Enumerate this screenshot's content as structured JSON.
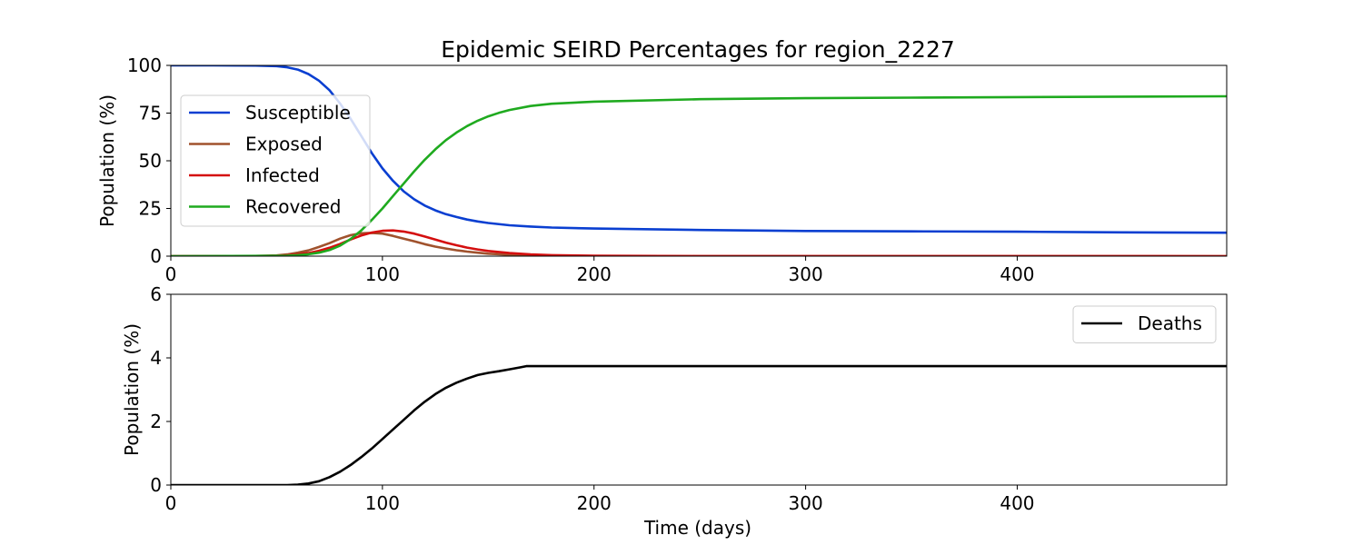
{
  "chart_data": [
    {
      "type": "line",
      "title": "Epidemic SEIRD Percentages for region_2227",
      "xlabel": "",
      "ylabel": "Population (%)",
      "xlim": [
        0,
        499
      ],
      "ylim": [
        0,
        100
      ],
      "xticks": [
        "0",
        "100",
        "200",
        "300",
        "400"
      ],
      "yticks": [
        "0",
        "25",
        "50",
        "75",
        "100"
      ],
      "grid": false,
      "legend_position": "upper-left",
      "series": [
        {
          "name": "Susceptible",
          "color": "#0a3fd1",
          "points": [
            [
              0,
              100
            ],
            [
              20,
              100
            ],
            [
              40,
              99.9
            ],
            [
              50,
              99.6
            ],
            [
              55,
              99
            ],
            [
              60,
              97.8
            ],
            [
              65,
              95.5
            ],
            [
              70,
              92
            ],
            [
              75,
              87
            ],
            [
              80,
              80
            ],
            [
              85,
              72
            ],
            [
              90,
              63
            ],
            [
              95,
              54
            ],
            [
              100,
              46
            ],
            [
              105,
              39.5
            ],
            [
              110,
              34
            ],
            [
              115,
              29.8
            ],
            [
              120,
              26.5
            ],
            [
              125,
              24
            ],
            [
              130,
              22
            ],
            [
              135,
              20.5
            ],
            [
              140,
              19.2
            ],
            [
              145,
              18.2
            ],
            [
              150,
              17.4
            ],
            [
              160,
              16.2
            ],
            [
              170,
              15.5
            ],
            [
              180,
              15
            ],
            [
              200,
              14.5
            ],
            [
              250,
              13.7
            ],
            [
              300,
              13.2
            ],
            [
              350,
              13
            ],
            [
              400,
              12.8
            ],
            [
              450,
              12.5
            ],
            [
              499,
              12.3
            ]
          ]
        },
        {
          "name": "Exposed",
          "color": "#a0522d",
          "points": [
            [
              0,
              0
            ],
            [
              40,
              0.1
            ],
            [
              50,
              0.4
            ],
            [
              55,
              0.9
            ],
            [
              60,
              1.8
            ],
            [
              65,
              3
            ],
            [
              70,
              4.8
            ],
            [
              75,
              6.8
            ],
            [
              80,
              9.2
            ],
            [
              85,
              11
            ],
            [
              90,
              12
            ],
            [
              95,
              12.2
            ],
            [
              100,
              11.8
            ],
            [
              105,
              10.6
            ],
            [
              110,
              9.2
            ],
            [
              115,
              7.8
            ],
            [
              120,
              6.3
            ],
            [
              125,
              5
            ],
            [
              130,
              4
            ],
            [
              135,
              3.1
            ],
            [
              140,
              2.4
            ],
            [
              145,
              1.8
            ],
            [
              150,
              1.3
            ],
            [
              160,
              0.7
            ],
            [
              170,
              0.4
            ],
            [
              180,
              0.2
            ],
            [
              200,
              0.1
            ],
            [
              250,
              0
            ],
            [
              499,
              0
            ]
          ]
        },
        {
          "name": "Infected",
          "color": "#d40f0f",
          "points": [
            [
              0,
              0
            ],
            [
              50,
              0.1
            ],
            [
              55,
              0.4
            ],
            [
              60,
              0.9
            ],
            [
              65,
              1.6
            ],
            [
              70,
              2.8
            ],
            [
              75,
              4.4
            ],
            [
              80,
              6.4
            ],
            [
              85,
              8.7
            ],
            [
              90,
              10.8
            ],
            [
              95,
              12.4
            ],
            [
              100,
              13.3
            ],
            [
              105,
              13.5
            ],
            [
              110,
              12.9
            ],
            [
              115,
              11.8
            ],
            [
              120,
              10.3
            ],
            [
              125,
              8.7
            ],
            [
              130,
              7.1
            ],
            [
              135,
              5.7
            ],
            [
              140,
              4.5
            ],
            [
              145,
              3.5
            ],
            [
              150,
              2.7
            ],
            [
              160,
              1.6
            ],
            [
              170,
              0.9
            ],
            [
              180,
              0.5
            ],
            [
              200,
              0.2
            ],
            [
              250,
              0.05
            ],
            [
              499,
              0
            ]
          ]
        },
        {
          "name": "Recovered",
          "color": "#1faa1f",
          "points": [
            [
              0,
              0
            ],
            [
              55,
              0.2
            ],
            [
              60,
              0.5
            ],
            [
              65,
              1
            ],
            [
              70,
              1.8
            ],
            [
              75,
              3.2
            ],
            [
              80,
              5.5
            ],
            [
              85,
              9
            ],
            [
              90,
              13.5
            ],
            [
              95,
              19
            ],
            [
              100,
              25
            ],
            [
              105,
              31.5
            ],
            [
              110,
              38
            ],
            [
              115,
              44.5
            ],
            [
              120,
              50.5
            ],
            [
              125,
              56
            ],
            [
              130,
              60.8
            ],
            [
              135,
              64.8
            ],
            [
              140,
              68.2
            ],
            [
              145,
              71
            ],
            [
              150,
              73.3
            ],
            [
              155,
              75.1
            ],
            [
              160,
              76.6
            ],
            [
              170,
              78.7
            ],
            [
              180,
              79.9
            ],
            [
              200,
              81
            ],
            [
              250,
              82.3
            ],
            [
              300,
              82.8
            ],
            [
              350,
              83.1
            ],
            [
              400,
              83.4
            ],
            [
              450,
              83.6
            ],
            [
              499,
              83.8
            ]
          ]
        }
      ]
    },
    {
      "type": "line",
      "title": "",
      "xlabel": "Time (days)",
      "ylabel": "Population (%)",
      "xlim": [
        0,
        499
      ],
      "ylim": [
        0,
        6
      ],
      "xticks": [
        "0",
        "100",
        "200",
        "300",
        "400"
      ],
      "yticks": [
        "0",
        "2",
        "4",
        "6"
      ],
      "grid": false,
      "legend_position": "upper-right",
      "series": [
        {
          "name": "Deaths",
          "color": "#000000",
          "points": [
            [
              0,
              0
            ],
            [
              55,
              0
            ],
            [
              60,
              0.01
            ],
            [
              65,
              0.05
            ],
            [
              70,
              0.12
            ],
            [
              75,
              0.25
            ],
            [
              80,
              0.42
            ],
            [
              85,
              0.63
            ],
            [
              90,
              0.88
            ],
            [
              95,
              1.15
            ],
            [
              100,
              1.45
            ],
            [
              105,
              1.75
            ],
            [
              110,
              2.05
            ],
            [
              115,
              2.35
            ],
            [
              120,
              2.62
            ],
            [
              125,
              2.86
            ],
            [
              130,
              3.06
            ],
            [
              135,
              3.22
            ],
            [
              140,
              3.35
            ],
            [
              145,
              3.46
            ],
            [
              150,
              3.53
            ],
            [
              155,
              3.58
            ],
            [
              160,
              3.64
            ],
            [
              165,
              3.7
            ],
            [
              168,
              3.74
            ],
            [
              200,
              3.74
            ],
            [
              300,
              3.74
            ],
            [
              400,
              3.74
            ],
            [
              499,
              3.74
            ]
          ]
        }
      ]
    }
  ]
}
